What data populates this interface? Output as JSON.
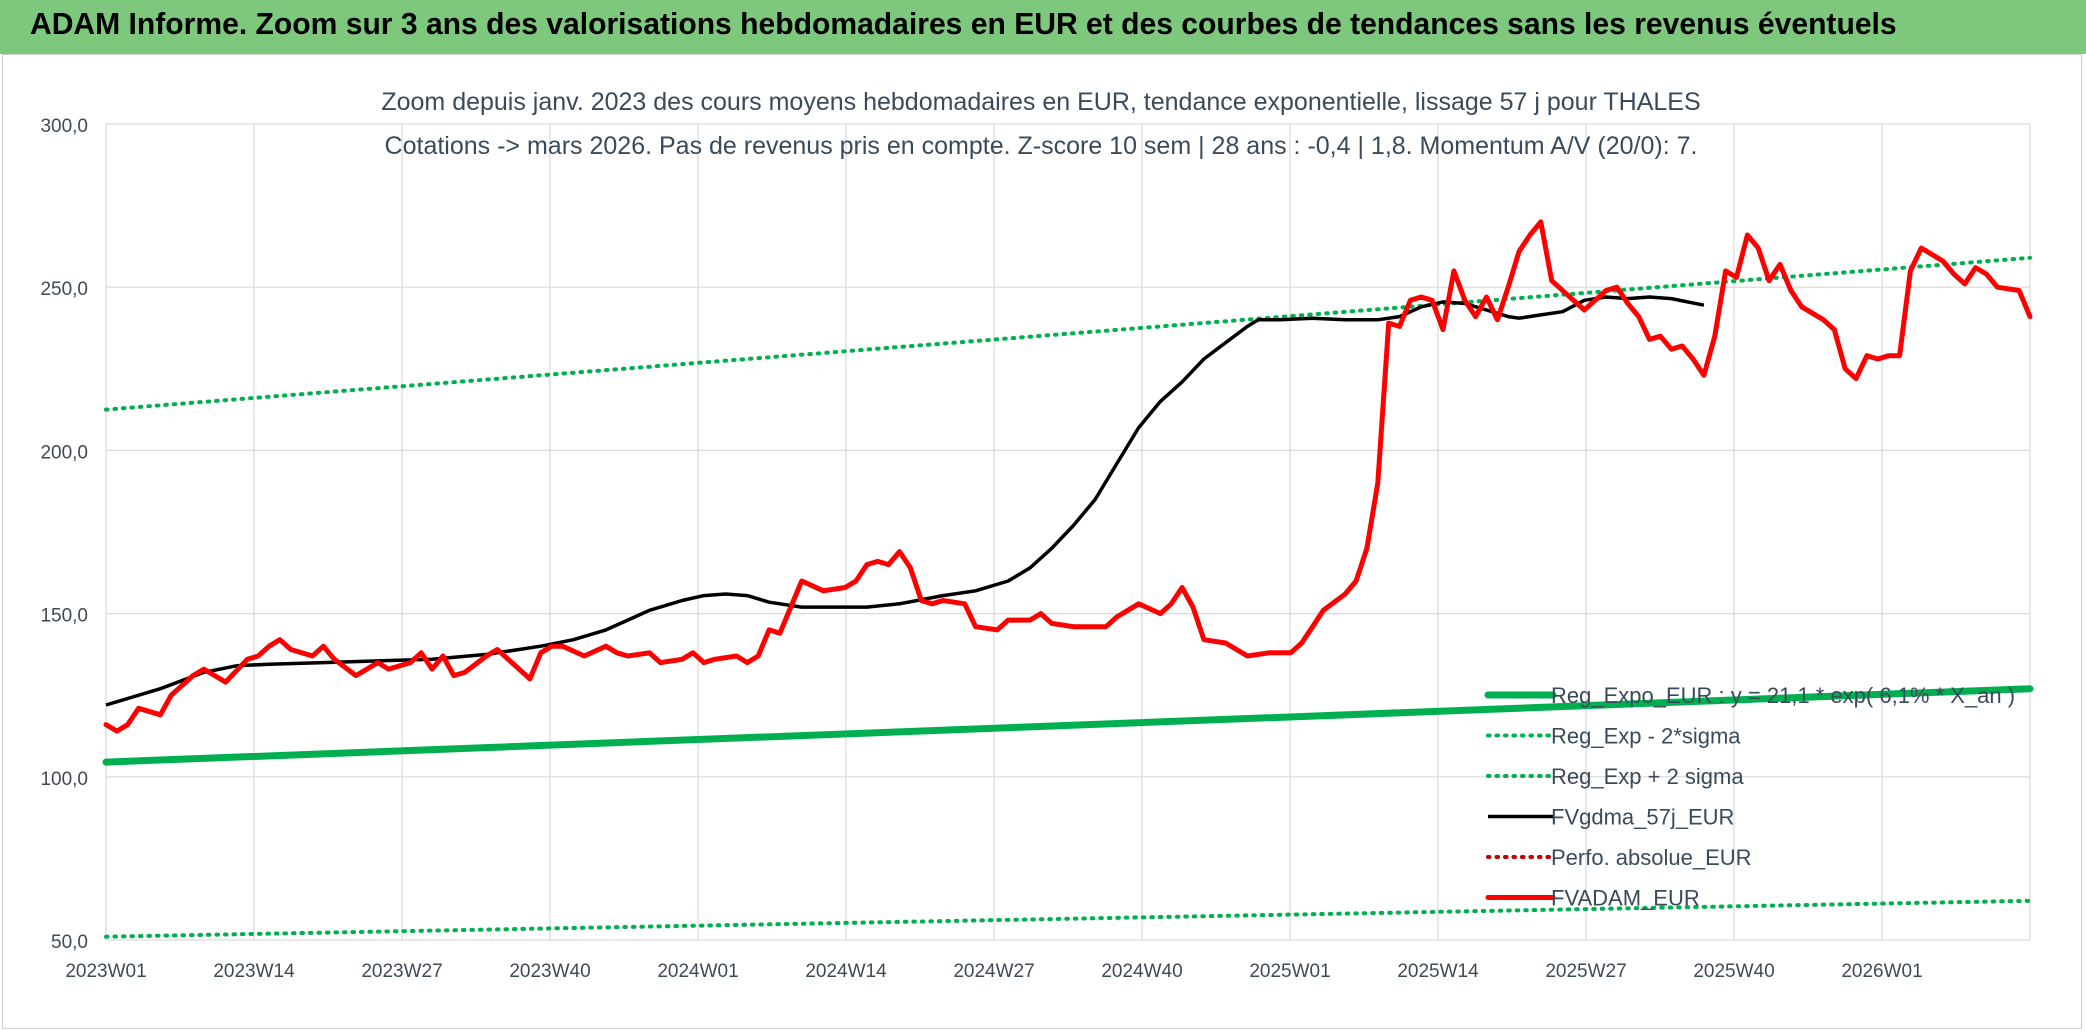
{
  "banner": {
    "title": "ADAM Informe. Zoom sur 3 ans des valorisations hebdomadaires en EUR et des courbes de tendances sans les revenus éventuels"
  },
  "colors": {
    "banner_bg": "#7ec87e",
    "reg_expo": "#00b050",
    "fvgdma": "#000000",
    "fvadam": "#ff0000",
    "perfo": "#c00000"
  },
  "chart_data": {
    "type": "line",
    "title": "Zoom depuis janv. 2023 des cours moyens hebdomadaires en EUR, tendance exponentielle, lissage 57 j pour THALES",
    "subtitle": "Cotations -> mars 2026. Pas de revenus pris en compte. Z-score 10 sem | 28 ans : -0,4 | 1,8. Momentum A/V (20/0): 7.",
    "ylim": [
      50,
      300
    ],
    "yticks": [
      "50,0",
      "100,0",
      "150,0",
      "200,0",
      "250,0",
      "300,0"
    ],
    "x_labels": [
      "2023W01",
      "2023W14",
      "2023W27",
      "2023W40",
      "2024W01",
      "2024W14",
      "2024W27",
      "2024W40",
      "2025W01",
      "2025W14",
      "2025W27",
      "2025W40",
      "2026W01"
    ],
    "n_weeks": 169,
    "grid": true,
    "legend_position": "bottom-right",
    "series": [
      {
        "name": "Reg_Expo_EUR : y = 21,1 * exp( 6,1% * X_an )",
        "style": "thick",
        "color": "#00b050",
        "points": [
          [
            0,
            104.5
          ],
          [
            168,
            127
          ]
        ]
      },
      {
        "name": "Reg_Exp - 2*sigma",
        "style": "dotted",
        "color": "#00b050",
        "points": [
          [
            0,
            51
          ],
          [
            168,
            62
          ]
        ]
      },
      {
        "name": "Reg_Exp + 2 sigma",
        "style": "dotted",
        "color": "#00b050",
        "points": [
          [
            0,
            212.5
          ],
          [
            168,
            259
          ]
        ]
      },
      {
        "name": "FVgdma_57j_EUR",
        "style": "solid",
        "color": "#000000",
        "points": [
          [
            0,
            122
          ],
          [
            4,
            124
          ],
          [
            10,
            127
          ],
          [
            18,
            132
          ],
          [
            24,
            134
          ],
          [
            30,
            134.5
          ],
          [
            40,
            135
          ],
          [
            50,
            135.5
          ],
          [
            60,
            136
          ],
          [
            70,
            137.5
          ],
          [
            76,
            139
          ],
          [
            80,
            140
          ],
          [
            86,
            142
          ],
          [
            92,
            145
          ],
          [
            96,
            148
          ],
          [
            100,
            151
          ],
          [
            106,
            154
          ],
          [
            110,
            155.5
          ],
          [
            114,
            156
          ],
          [
            118,
            155.5
          ],
          [
            122,
            153.5
          ],
          [
            128,
            152
          ],
          [
            140,
            152
          ],
          [
            146,
            153
          ],
          [
            154,
            155.5
          ],
          [
            160,
            157
          ],
          [
            166,
            160
          ],
          [
            170,
            164
          ],
          [
            174,
            170
          ],
          [
            178,
            177
          ],
          [
            182,
            185
          ],
          [
            186,
            196
          ],
          [
            190,
            207
          ],
          [
            194,
            215
          ],
          [
            198,
            221
          ],
          [
            202,
            228
          ],
          [
            206,
            233
          ],
          [
            210,
            238
          ],
          [
            212,
            240
          ],
          [
            216,
            240
          ],
          [
            222,
            240.5
          ],
          [
            228,
            240
          ],
          [
            234,
            240
          ],
          [
            238,
            241
          ],
          [
            242,
            244
          ],
          [
            246,
            245.5
          ],
          [
            250,
            245
          ],
          [
            254,
            243
          ],
          [
            258,
            241
          ],
          [
            260,
            240.5
          ],
          [
            264,
            241.5
          ],
          [
            268,
            242.5
          ],
          [
            272,
            246
          ],
          [
            276,
            247
          ],
          [
            280,
            246.5
          ],
          [
            284,
            247
          ],
          [
            288,
            246.5
          ],
          [
            294,
            244.5
          ]
        ]
      },
      {
        "name": "Perfo. absolue_EUR",
        "style": "dotted",
        "color": "#c00000",
        "points": []
      },
      {
        "name": "FVADAM_EUR",
        "style": "thick",
        "color": "#ff0000",
        "points": [
          [
            0,
            116
          ],
          [
            2,
            114
          ],
          [
            4,
            116
          ],
          [
            6,
            121
          ],
          [
            10,
            119
          ],
          [
            12,
            125
          ],
          [
            16,
            131
          ],
          [
            18,
            133
          ],
          [
            22,
            129
          ],
          [
            26,
            136
          ],
          [
            28,
            137
          ],
          [
            30,
            140
          ],
          [
            32,
            142
          ],
          [
            34,
            139
          ],
          [
            38,
            137
          ],
          [
            40,
            140
          ],
          [
            42,
            136
          ],
          [
            46,
            131
          ],
          [
            50,
            135
          ],
          [
            52,
            133
          ],
          [
            56,
            135
          ],
          [
            58,
            138
          ],
          [
            60,
            133
          ],
          [
            62,
            137
          ],
          [
            64,
            131
          ],
          [
            66,
            132
          ],
          [
            70,
            137
          ],
          [
            72,
            139
          ],
          [
            74,
            136
          ],
          [
            76,
            133
          ],
          [
            78,
            130
          ],
          [
            80,
            138
          ],
          [
            82,
            140
          ],
          [
            84,
            140
          ],
          [
            88,
            137
          ],
          [
            92,
            140
          ],
          [
            94,
            138
          ],
          [
            96,
            137
          ],
          [
            100,
            138
          ],
          [
            102,
            135
          ],
          [
            106,
            136
          ],
          [
            108,
            138
          ],
          [
            110,
            135
          ],
          [
            112,
            136
          ],
          [
            116,
            137
          ],
          [
            118,
            135
          ],
          [
            120,
            137
          ],
          [
            122,
            145
          ],
          [
            124,
            144
          ],
          [
            126,
            152
          ],
          [
            128,
            160
          ],
          [
            132,
            157
          ],
          [
            136,
            158
          ],
          [
            138,
            160
          ],
          [
            140,
            165
          ],
          [
            142,
            166
          ],
          [
            144,
            165
          ],
          [
            146,
            169
          ],
          [
            148,
            164
          ],
          [
            150,
            154
          ],
          [
            152,
            153
          ],
          [
            154,
            154
          ],
          [
            158,
            153
          ],
          [
            160,
            146
          ],
          [
            164,
            145
          ],
          [
            166,
            148
          ],
          [
            170,
            148
          ],
          [
            172,
            150
          ],
          [
            174,
            147
          ],
          [
            178,
            146
          ],
          [
            182,
            146
          ],
          [
            184,
            146
          ],
          [
            186,
            149
          ],
          [
            190,
            153
          ],
          [
            194,
            150
          ],
          [
            196,
            153
          ],
          [
            198,
            158
          ],
          [
            200,
            152
          ],
          [
            202,
            142
          ],
          [
            206,
            141
          ],
          [
            208,
            139
          ],
          [
            210,
            137
          ],
          [
            214,
            138
          ],
          [
            218,
            138
          ],
          [
            220,
            141
          ],
          [
            222,
            146
          ],
          [
            224,
            151
          ],
          [
            228,
            156
          ],
          [
            230,
            160
          ],
          [
            232,
            170
          ],
          [
            234,
            190
          ],
          [
            236,
            239
          ],
          [
            238,
            238
          ],
          [
            240,
            246
          ],
          [
            242,
            247
          ],
          [
            244,
            246
          ],
          [
            246,
            237
          ],
          [
            248,
            255
          ],
          [
            250,
            246
          ],
          [
            252,
            241
          ],
          [
            254,
            247
          ],
          [
            256,
            240
          ],
          [
            258,
            250
          ],
          [
            260,
            261
          ],
          [
            262,
            266
          ],
          [
            264,
            270
          ],
          [
            266,
            252
          ],
          [
            270,
            246
          ],
          [
            272,
            243
          ],
          [
            276,
            249
          ],
          [
            278,
            250
          ],
          [
            280,
            245
          ],
          [
            282,
            241
          ],
          [
            284,
            234
          ],
          [
            286,
            235
          ],
          [
            288,
            231
          ],
          [
            290,
            232
          ],
          [
            292,
            228
          ],
          [
            294,
            223
          ],
          [
            296,
            235
          ],
          [
            298,
            255
          ],
          [
            300,
            253
          ],
          [
            302,
            266
          ],
          [
            304,
            262
          ],
          [
            306,
            252
          ],
          [
            308,
            257
          ],
          [
            310,
            249
          ],
          [
            312,
            244
          ],
          [
            316,
            240
          ],
          [
            318,
            237
          ],
          [
            320,
            225
          ],
          [
            322,
            222
          ],
          [
            324,
            229
          ],
          [
            326,
            228
          ],
          [
            328,
            229
          ],
          [
            330,
            229
          ],
          [
            332,
            255
          ],
          [
            334,
            262
          ],
          [
            336,
            260
          ],
          [
            338,
            258
          ],
          [
            340,
            254
          ],
          [
            342,
            251
          ],
          [
            344,
            256
          ],
          [
            346,
            254
          ],
          [
            348,
            250
          ],
          [
            352,
            249
          ],
          [
            354,
            241
          ]
        ]
      }
    ]
  }
}
